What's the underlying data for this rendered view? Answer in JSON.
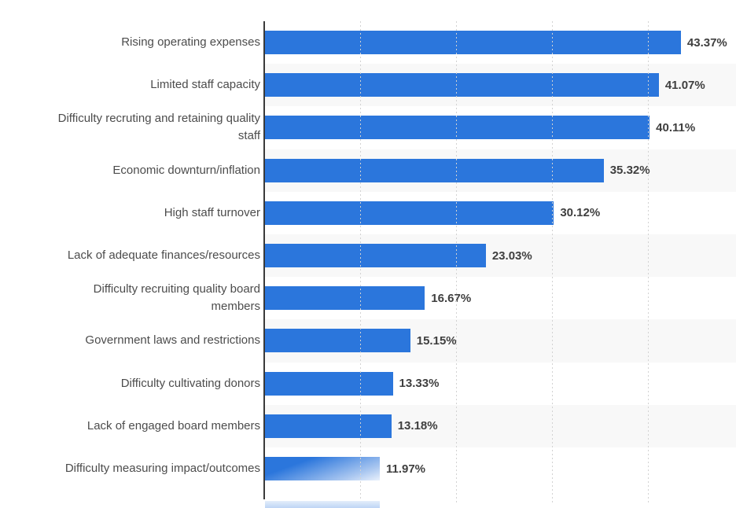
{
  "chart_data": {
    "type": "bar",
    "orientation": "horizontal",
    "title": "",
    "xlabel": "",
    "ylabel": "",
    "unit": "%",
    "xlim": [
      0,
      49.2
    ],
    "grid": "vertical dotted gridlines",
    "gridline_values": [
      10,
      20,
      30,
      40
    ],
    "legend_position": "none",
    "categories": [
      "Rising operating expenses",
      "Limited staff capacity",
      "Difficulty recruting and retaining quality staff",
      "Economic downturn/inflation",
      "High staff turnover",
      "Lack of adequate finances/resources",
      "Difficulty recruiting quality board members",
      "Government laws and restrictions",
      "Difficulty cultivating donors",
      "Lack of engaged board members",
      "Difficulty measuring impact/outcomes"
    ],
    "label_lines": [
      [
        "Rising operating expenses"
      ],
      [
        "Limited staff capacity"
      ],
      [
        "Difficulty recruting and retaining quality",
        "staff"
      ],
      [
        "Economic downturn/inflation"
      ],
      [
        "High staff turnover"
      ],
      [
        "Lack of adequate finances/resources"
      ],
      [
        "Difficulty recruiting quality board",
        "members"
      ],
      [
        "Government laws and restrictions"
      ],
      [
        "Difficulty cultivating donors"
      ],
      [
        "Lack of engaged board members"
      ],
      [
        "Difficulty measuring impact/outcomes"
      ]
    ],
    "values": [
      43.37,
      41.07,
      40.11,
      35.32,
      30.12,
      23.03,
      16.67,
      15.15,
      13.33,
      13.18,
      11.97
    ],
    "value_labels": [
      "43.37%",
      "41.07%",
      "40.11%",
      "35.32%",
      "30.12%",
      "23.03%",
      "16.67%",
      "15.15%",
      "13.33%",
      "13.18%",
      "11.97%"
    ],
    "last_bar_fade_in": true,
    "partial_next_bar_visible": true,
    "colors": {
      "bar": "#2b76dc",
      "bar_fade_light": "#aac7f0",
      "row_stripe": "#f8f8f8",
      "gridline": "#d2d2d2",
      "axis_line": "#3a3a3a",
      "category_label": "#4c4c4c",
      "value_label": "#3f3f3f",
      "partial_bar_top": "#e4eefb",
      "partial_bar_bottom": "#b9d2f4"
    }
  }
}
